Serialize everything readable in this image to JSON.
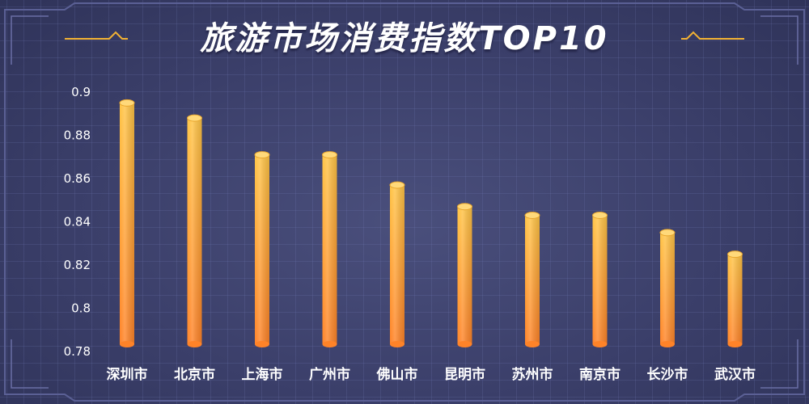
{
  "title": "旅游市场消费指数TOP10",
  "colors": {
    "bar_top": "#ffc445",
    "bar_bottom": "#ff8328",
    "frame": "#f2b233",
    "background": "#3e4270"
  },
  "chart_data": {
    "type": "bar",
    "title": "旅游市场消费指数TOP10",
    "xlabel": "",
    "ylabel": "",
    "categories": [
      "深圳市",
      "北京市",
      "上海市",
      "广州市",
      "佛山市",
      "昆明市",
      "苏州市",
      "南京市",
      "长沙市",
      "武汉市"
    ],
    "values": [
      0.895,
      0.888,
      0.871,
      0.871,
      0.857,
      0.847,
      0.843,
      0.843,
      0.835,
      0.825
    ],
    "ylim": [
      0.78,
      0.9
    ],
    "yticks": [
      "0.9",
      "0.88",
      "0.86",
      "0.84",
      "0.82",
      "0.8",
      "0.78"
    ],
    "grid": true,
    "legend": "none"
  }
}
